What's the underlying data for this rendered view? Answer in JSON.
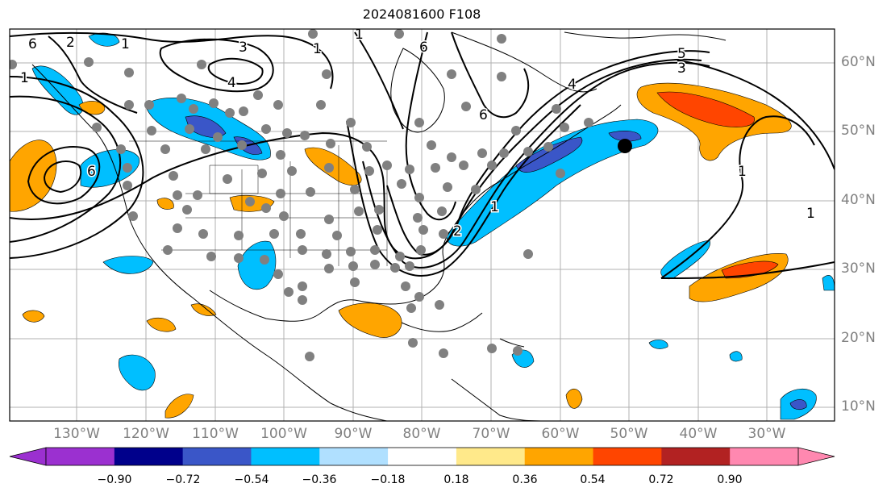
{
  "title": "2024081600 F108",
  "map": {
    "lat_labels": [
      "60°N",
      "50°N",
      "40°N",
      "30°N",
      "20°N",
      "10°N"
    ],
    "lon_labels": [
      "130°W",
      "120°W",
      "110°W",
      "100°W",
      "90°W",
      "80°W",
      "70°W",
      "60°W",
      "50°W",
      "40°W",
      "30°W"
    ],
    "contour_labels": [
      "6",
      "2",
      "1",
      "1",
      "3",
      "4",
      "1",
      "6",
      "4",
      "5",
      "3",
      "6",
      "1",
      "2",
      "1",
      "1",
      "1",
      "6"
    ],
    "marker": "storm-center-dot"
  },
  "colorbar": {
    "tick_labels": [
      "−0.90",
      "−0.72",
      "−0.54",
      "−0.36",
      "−0.18",
      "0.18",
      "0.36",
      "0.54",
      "0.72",
      "0.90"
    ],
    "colors": [
      "#9b30d0",
      "#00008b",
      "#3a56c8",
      "#00bfff",
      "#b0e0ff",
      "#ffffff",
      "#ffe98a",
      "#ffa500",
      "#ff4500",
      "#b22222",
      "#ff88b0"
    ],
    "under_color": "#9b30d0",
    "over_color": "#ff88b0"
  }
}
